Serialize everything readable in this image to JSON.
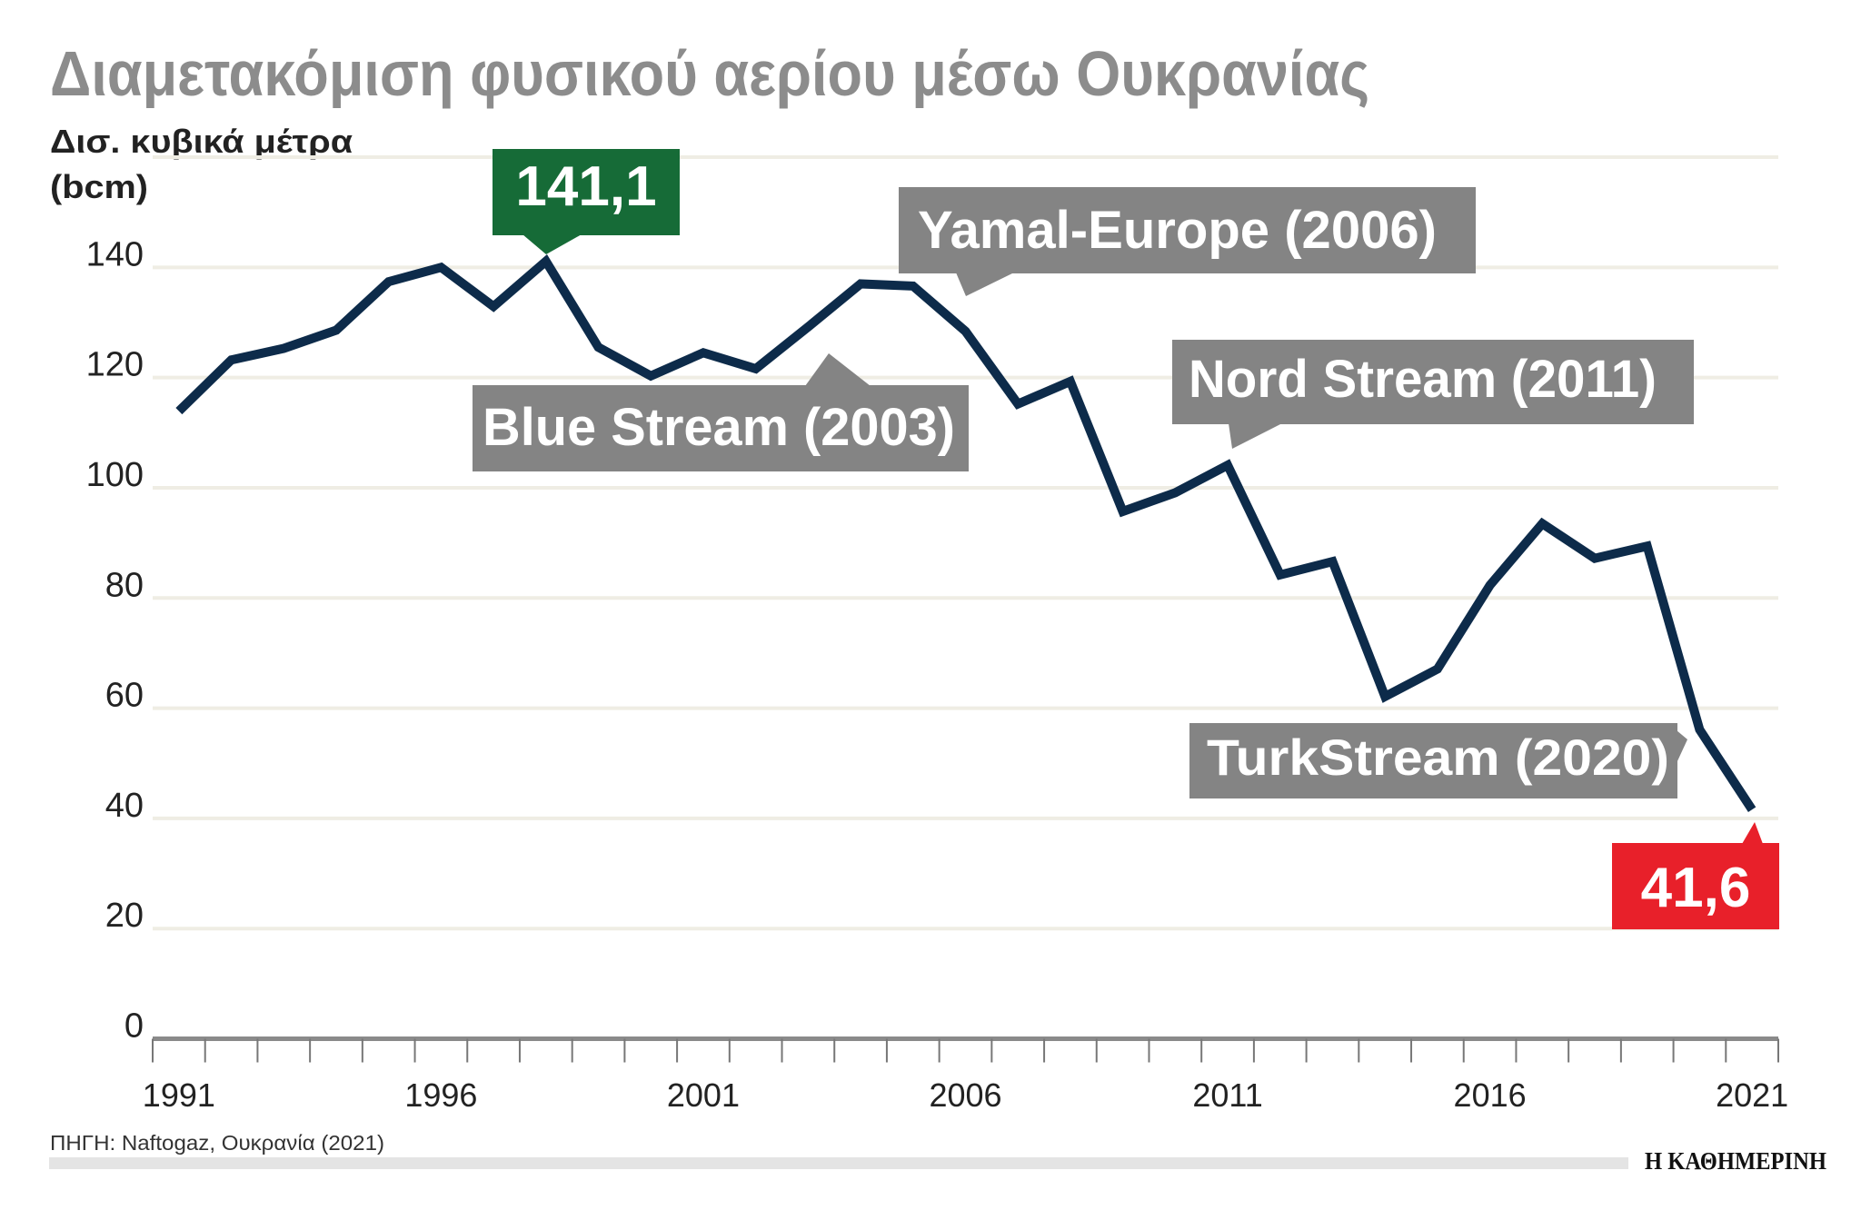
{
  "chart_data": {
    "type": "line",
    "title": "Διαμετακόμιση φυσικού αερίου μέσω Ουκρανίας",
    "ylabel_line1": "Δισ. κυβικά μέτρα",
    "ylabel_line2": "(bcm)",
    "ylim": [
      0,
      160
    ],
    "yticks": [
      "0",
      "20",
      "40",
      "60",
      "80",
      "100",
      "120",
      "140"
    ],
    "xticks": [
      "1991",
      "1996",
      "2001",
      "2006",
      "2011",
      "2016",
      "2021"
    ],
    "grid": true,
    "x": [
      1991,
      1992,
      1993,
      1994,
      1995,
      1996,
      1997,
      1998,
      1999,
      2000,
      2001,
      2002,
      2003,
      2004,
      2005,
      2006,
      2007,
      2008,
      2009,
      2010,
      2011,
      2012,
      2013,
      2014,
      2015,
      2016,
      2017,
      2018,
      2019,
      2020,
      2021
    ],
    "values": [
      113.9,
      123.2,
      125.3,
      128.6,
      137.4,
      140,
      132.9,
      141.1,
      125.5,
      120.3,
      124.5,
      121.6,
      129.2,
      137,
      136.6,
      128.4,
      115.2,
      119.3,
      95.7,
      99.1,
      104.1,
      84.2,
      86.6,
      62.1,
      67.1,
      82.3,
      93.5,
      87.2,
      89.4,
      56.1,
      41.6
    ],
    "line_color": "#0d2b4a",
    "annotations": {
      "max_label": "141,1",
      "min_label": "41,6",
      "yamal": "Yamal-Europe (2006)",
      "blue_stream": "Blue Stream (2003)",
      "nord_stream": "Nord Stream (2011)",
      "turkstream": "TurkStream (2020)"
    },
    "colors": {
      "max": "#166b37",
      "min": "#e8202a",
      "pipeline": "#848484",
      "title": "#8c8c8c",
      "grid": "#efede4"
    }
  },
  "footer": {
    "source": "ΠΗΓΗ: Naftogaz, Ουκρανία (2021)",
    "logo": "Η ΚΑΘΗΜΕΡΙΝΗ"
  }
}
